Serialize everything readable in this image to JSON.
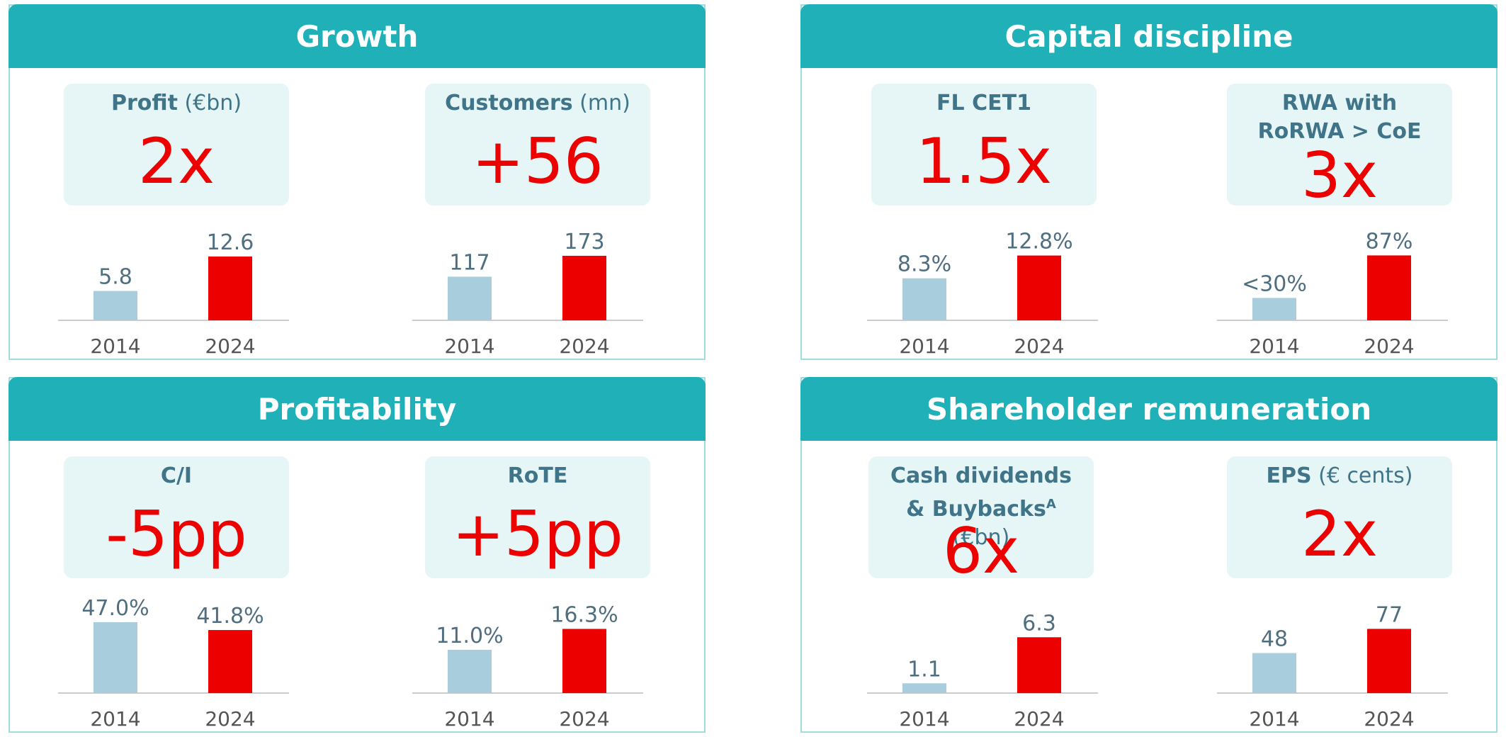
{
  "colors": {
    "header": "#1fb0b8",
    "kpi_box": "#e6f5f6",
    "kpi_label": "#3f7489",
    "kpi_value": "#ec0000",
    "bar_2014": "#a8cddd",
    "bar_2024": "#ec0000",
    "axis_text": "#555555",
    "value_text": "#4f6f80"
  },
  "panels": [
    {
      "title": "Growth"
    },
    {
      "title": "Capital discipline"
    },
    {
      "title": "Profitability"
    },
    {
      "title": "Shareholder remuneration"
    }
  ],
  "kpis": [
    {
      "bold": "Profit",
      "normal": " (€bn)",
      "value": "2x"
    },
    {
      "bold": "Customers",
      "normal": " (mn)",
      "value": "+56"
    },
    {
      "bold": "FL CET1",
      "normal": "",
      "value": "1.5x"
    },
    {
      "bold": "RWA with RoRWA > CoE",
      "normal": "",
      "value": "3x"
    },
    {
      "bold": "C/I",
      "normal": "",
      "value": "-5pp"
    },
    {
      "bold": "RoTE",
      "normal": "",
      "value": "+5pp"
    },
    {
      "bold": "Cash dividends & Buybacks",
      "sup": "A",
      "normal": " (€bn)",
      "value": "6x"
    },
    {
      "bold": "EPS",
      "normal": " (€ cents)",
      "value": "2x"
    }
  ],
  "chart_data": [
    {
      "type": "bar",
      "categories": [
        "2014",
        "2024"
      ],
      "values": [
        5.8,
        12.6
      ],
      "data_labels": [
        "5.8",
        "12.6"
      ],
      "ylim": [
        0,
        14
      ]
    },
    {
      "type": "bar",
      "categories": [
        "2014",
        "2024"
      ],
      "values": [
        117,
        173
      ],
      "data_labels": [
        "117",
        "173"
      ],
      "ylim": [
        0,
        190
      ]
    },
    {
      "type": "bar",
      "categories": [
        "2014",
        "2024"
      ],
      "values": [
        8.3,
        12.8
      ],
      "data_labels": [
        "8.3%",
        "12.8%"
      ],
      "ylim": [
        0,
        14
      ]
    },
    {
      "type": "bar",
      "categories": [
        "2014",
        "2024"
      ],
      "values": [
        30,
        87
      ],
      "data_labels": [
        "<30%",
        "87%"
      ],
      "ylim": [
        0,
        95
      ]
    },
    {
      "type": "bar",
      "categories": [
        "2014",
        "2024"
      ],
      "values": [
        47.0,
        41.8
      ],
      "data_labels": [
        "47.0%",
        "41.8%"
      ],
      "ylim": [
        0,
        47
      ]
    },
    {
      "type": "bar",
      "categories": [
        "2014",
        "2024"
      ],
      "values": [
        11.0,
        16.3
      ],
      "data_labels": [
        "11.0%",
        "16.3%"
      ],
      "ylim": [
        0,
        18
      ]
    },
    {
      "type": "bar",
      "categories": [
        "2014",
        "2024"
      ],
      "values": [
        1.1,
        6.3
      ],
      "data_labels": [
        "1.1",
        "6.3"
      ],
      "ylim": [
        0,
        8
      ]
    },
    {
      "type": "bar",
      "categories": [
        "2014",
        "2024"
      ],
      "values": [
        48,
        77
      ],
      "data_labels": [
        "48",
        "77"
      ],
      "ylim": [
        0,
        85
      ]
    }
  ]
}
